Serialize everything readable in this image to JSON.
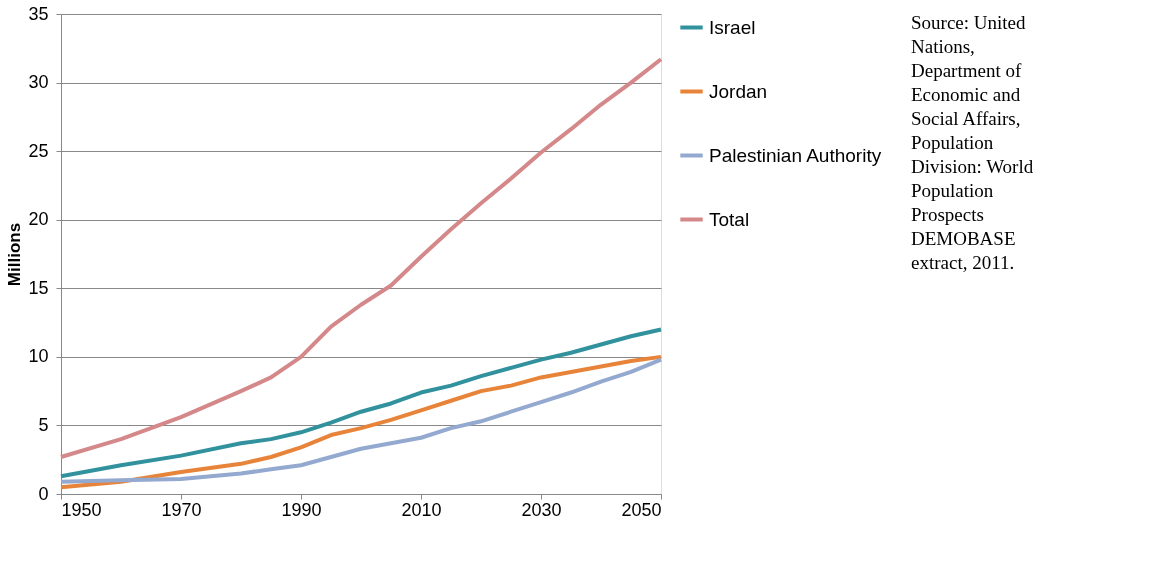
{
  "chart_data": {
    "type": "line",
    "ylabel": "Millions",
    "x": [
      1950,
      1960,
      1970,
      1980,
      1985,
      1990,
      1995,
      2000,
      2005,
      2010,
      2015,
      2020,
      2025,
      2030,
      2035,
      2040,
      2045,
      2050
    ],
    "series": [
      {
        "name": "Israel",
        "color": "#31929e",
        "values": [
          1.3,
          2.1,
          2.8,
          3.7,
          4.0,
          4.5,
          5.2,
          6.0,
          6.6,
          7.4,
          7.9,
          8.6,
          9.2,
          9.8,
          10.3,
          10.9,
          11.5,
          12.0
        ]
      },
      {
        "name": "Jordan",
        "color": "#e8843a",
        "values": [
          0.5,
          0.9,
          1.6,
          2.2,
          2.7,
          3.4,
          4.3,
          4.8,
          5.4,
          6.1,
          6.8,
          7.5,
          7.9,
          8.5,
          8.9,
          9.3,
          9.7,
          10.0
        ]
      },
      {
        "name": "Palestinian Authority",
        "color": "#93a9cf",
        "values": [
          0.9,
          1.0,
          1.1,
          1.5,
          1.8,
          2.1,
          2.7,
          3.3,
          3.7,
          4.1,
          4.8,
          5.3,
          6.0,
          6.7,
          7.4,
          8.2,
          8.9,
          9.8
        ]
      },
      {
        "name": "Total",
        "color": "#d4888a",
        "values": [
          2.7,
          4.0,
          5.6,
          7.5,
          8.5,
          10.0,
          12.2,
          13.8,
          15.2,
          17.3,
          19.3,
          21.2,
          23.0,
          24.9,
          26.6,
          28.4,
          30.0,
          31.7
        ]
      }
    ],
    "xlim": [
      1950,
      2050
    ],
    "xticks": [
      1950,
      1970,
      1990,
      2010,
      2030,
      2050
    ],
    "ylim": [
      0,
      35
    ],
    "yticks": [
      0,
      5,
      10,
      15,
      20,
      25,
      30,
      35
    ],
    "grid": "y",
    "legend": "right",
    "marker": "none",
    "line_style": "solid",
    "annotations": [
      "Source: United Nations, Department of Economic and Social Affairs, Population Division: World Population Prospects DEMOBASE extract, 2011."
    ]
  }
}
